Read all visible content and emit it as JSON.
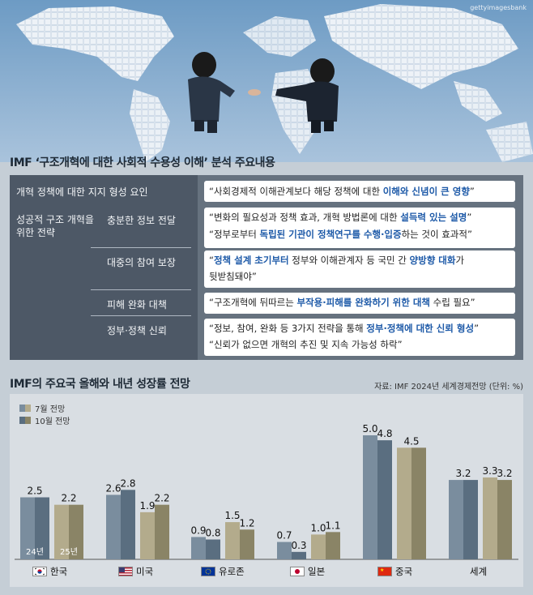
{
  "photo_credit": "gettyimagesbank",
  "section1": {
    "title": "IMF ‘구조개혁에 대한 사회적 수용성 이해’ 분석 주요내용",
    "support_factor": {
      "label": "개혁 정책에 대한 지지 형성 요인",
      "quote_pre": "“사회경제적 이해관계보다 해당 정책에 대한 ",
      "quote_hl": "이해와 신념이 큰 영향",
      "quote_post": "”"
    },
    "strategy_label": "성공적 구조 개혁을 위한 전략",
    "strategies": [
      {
        "label": "충분한 정보 전달",
        "lines": [
          {
            "pre": "“변화의 필요성과 정책 효과, 개혁 방법론에 대한 ",
            "hl": "설득력 있는 설명",
            "post": "”"
          },
          {
            "pre": "“정부로부터 ",
            "hl": "독립된 기관이 정책연구를 수행·입증",
            "post": "하는 것이 효과적”"
          }
        ]
      },
      {
        "label": "대중의 참여 보장",
        "lines": [
          {
            "pre": "“",
            "hl": "정책 설계 초기부터",
            "post": " 정부와 이해관계자 등 국민 간 "
          },
          {
            "pre": "",
            "hl": "양방향 대화",
            "post": "가"
          },
          {
            "pre": "뒷받침돼야”",
            "hl": "",
            "post": ""
          }
        ]
      },
      {
        "label": "피해 완화 대책",
        "lines": [
          {
            "pre": "“구조개혁에 뒤따르는 ",
            "hl": "부작용·피해를 완화하기 위한 대책",
            "post": " 수립 필요”"
          }
        ]
      },
      {
        "label": "정부·정책 신뢰",
        "lines": [
          {
            "pre": "“정보, 참여, 완화 등 3가지 전략을 통해 ",
            "hl": "정부·정책에 대한 신뢰 형성",
            "post": "”"
          },
          {
            "pre": "“신뢰가 없으면 개혁의 추진 및 지속 가능성 하락”",
            "hl": "",
            "post": ""
          }
        ]
      }
    ]
  },
  "section2": {
    "title": "IMF의 주요국 올해와 내년 성장률 전망",
    "source": "자료: IMF 2024년 세계경제전망 (단위: %)"
  },
  "chart_data": {
    "type": "bar",
    "title": "IMF의 주요국 올해와 내년 성장률 전망",
    "unit": "%",
    "legend": [
      "7월 전망",
      "10월 전망"
    ],
    "colors": {
      "july_2024": "#7a8d9e",
      "oct_2024": "#5a6e80",
      "july_2025": "#b3ab8c",
      "oct_2025": "#8a8466"
    },
    "year_labels": [
      "24년",
      "25년"
    ],
    "categories": [
      "한국",
      "미국",
      "유로존",
      "일본",
      "중국",
      "세계"
    ],
    "flags": [
      "korea-flag-icon",
      "usa-flag-icon",
      "eu-flag-icon",
      "japan-flag-icon",
      "china-flag-icon",
      ""
    ],
    "series": [
      {
        "name": "7월 전망",
        "year": "24년",
        "values": [
          2.5,
          2.6,
          0.9,
          0.7,
          5.0,
          3.2
        ]
      },
      {
        "name": "10월 전망",
        "year": "24년",
        "values": [
          2.5,
          2.8,
          0.8,
          0.3,
          4.8,
          3.2
        ]
      },
      {
        "name": "7월 전망",
        "year": "25년",
        "values": [
          2.2,
          1.9,
          1.5,
          1.0,
          4.5,
          3.3
        ]
      },
      {
        "name": "10월 전망",
        "year": "25년",
        "values": [
          2.2,
          2.2,
          1.2,
          1.1,
          4.5,
          3.2
        ]
      }
    ],
    "data_labels": [
      [
        "2.5",
        "2.2"
      ],
      [
        "2.6",
        "2.8",
        "1.9",
        "2.2"
      ],
      [
        "0.9",
        "0.8",
        "1.5",
        "1.2"
      ],
      [
        "0.7",
        "0.3",
        "1.0",
        "1.1"
      ],
      [
        "5.0",
        "4.8",
        "4.5"
      ],
      [
        "3.2",
        "3.3",
        "3.2"
      ]
    ],
    "ylim": [
      0,
      5.5
    ],
    "xlabel": "",
    "ylabel": ""
  }
}
